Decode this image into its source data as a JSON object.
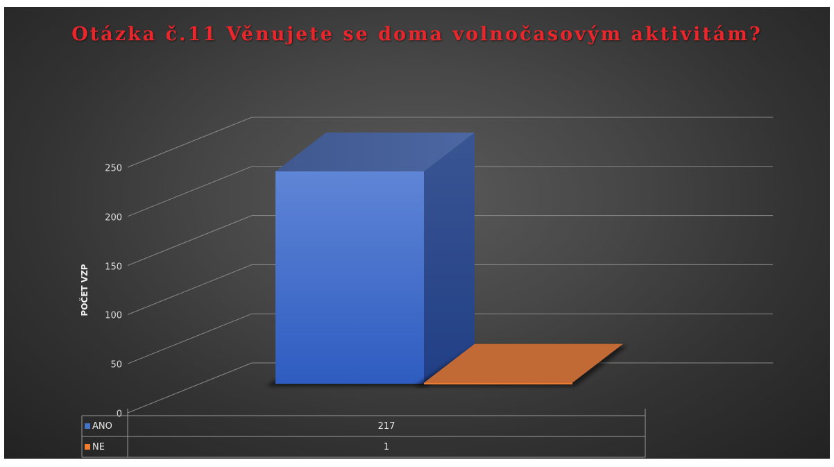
{
  "chart_data": {
    "type": "bar",
    "title": "Otázka č.11 Věnujete se doma volnočasovým aktivitám?",
    "ylabel": "POČET VZP",
    "xlabel": "",
    "ylim": [
      0,
      250
    ],
    "y_ticks": [
      "0",
      "50",
      "100",
      "150",
      "200",
      "250"
    ],
    "categories": [
      "ANO",
      "NE"
    ],
    "values": [
      217,
      1
    ],
    "value_labels": [
      "217",
      "1"
    ],
    "colors": [
      "#4472c4",
      "#ed7d31"
    ],
    "grid": true,
    "legend": "data table below chart",
    "three_d": true
  }
}
